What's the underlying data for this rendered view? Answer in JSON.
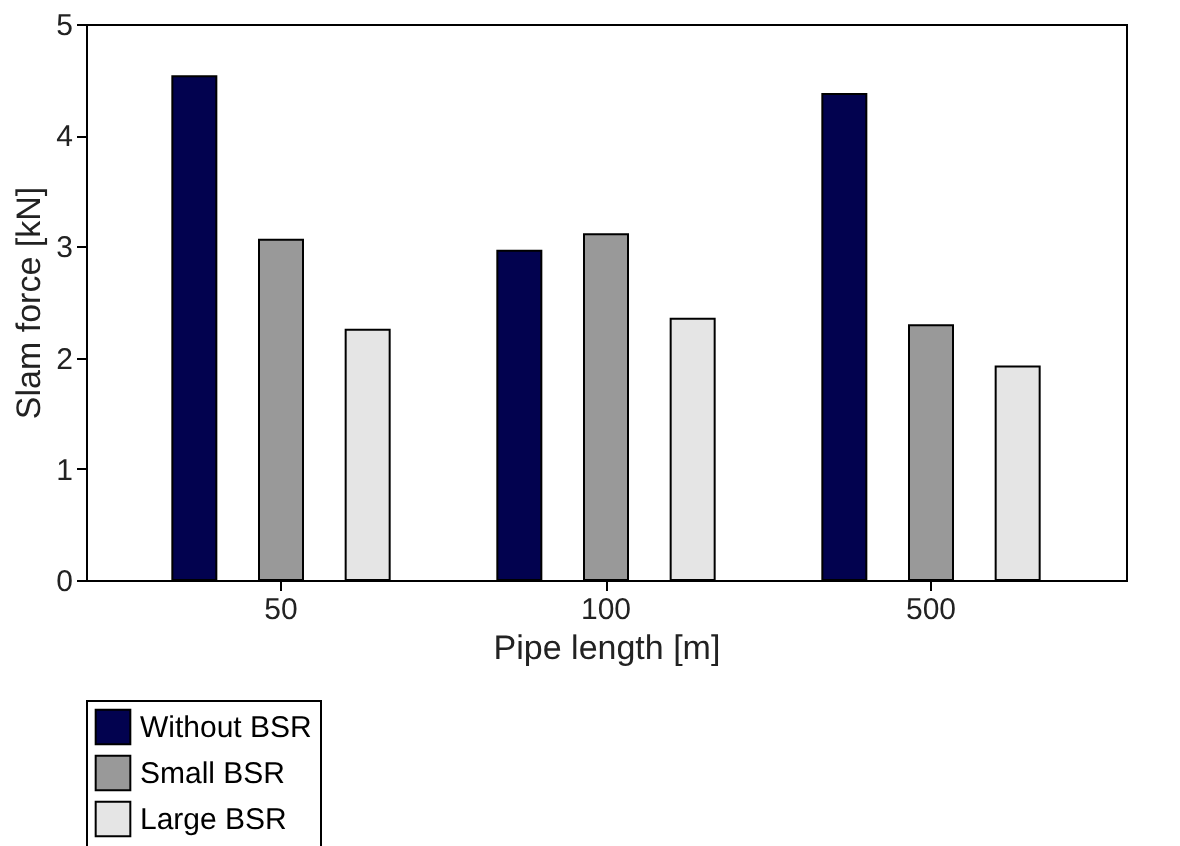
{
  "chart_data": {
    "type": "bar",
    "xlabel": "Pipe length [m]",
    "ylabel": "Slam force [kN]",
    "categories": [
      "50",
      "100",
      "500"
    ],
    "series": [
      {
        "name": "Without BSR",
        "color": "#02024f",
        "values": [
          4.53,
          2.96,
          4.37
        ]
      },
      {
        "name": "Small BSR",
        "color": "#999999",
        "values": [
          3.06,
          3.11,
          2.29
        ]
      },
      {
        "name": "Large BSR",
        "color": "#e5e5e5",
        "values": [
          2.25,
          2.35,
          1.92
        ]
      }
    ],
    "ylim": [
      0,
      5
    ],
    "yticks": [
      0,
      1,
      2,
      3,
      4,
      5
    ],
    "grid": false,
    "legend": "bottom"
  }
}
